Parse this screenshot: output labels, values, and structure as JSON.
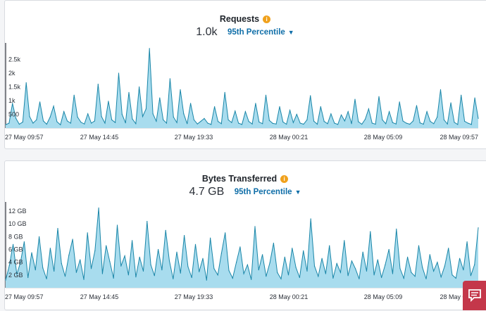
{
  "requests": {
    "title": "Requests",
    "info_icon": "info-icon",
    "value": "1.0k",
    "percentile_label": "95th Percentile",
    "y_ticks": [
      "500",
      "1k",
      "1.5k",
      "2k",
      "2.5k"
    ],
    "x_ticks": [
      "27 May 09:57",
      "27 May 14:45",
      "27 May 19:33",
      "28 May 00:21",
      "28 May 05:09",
      "28 May 09:57"
    ]
  },
  "bytes": {
    "title": "Bytes Transferred",
    "info_icon": "info-icon",
    "value": "4.7 GB",
    "percentile_label": "95th Percentile",
    "y_ticks": [
      "2 GB",
      "4 GB",
      "6 GB",
      "8 GB",
      "10 GB",
      "12 GB"
    ],
    "x_ticks": [
      "27 May 09:57",
      "27 May 14:45",
      "27 May 19:33",
      "28 May 00:21",
      "28 May 05:09",
      "28 May 09:57"
    ]
  },
  "colors": {
    "line": "#1a86a8",
    "fill": "#a8dcee",
    "accent": "#0f6ea8",
    "feedback": "#c4374a"
  },
  "chart_data": [
    {
      "type": "area",
      "title": "Requests",
      "xlabel": "",
      "ylabel": "",
      "ylim": [
        0,
        3000
      ],
      "x_ticks": [
        "27 May 09:57",
        "27 May 14:45",
        "27 May 19:33",
        "28 May 00:21",
        "28 May 05:09",
        "28 May 09:57"
      ],
      "series": [
        {
          "name": "Requests",
          "values": [
            120,
            180,
            900,
            350,
            140,
            220,
            1650,
            420,
            180,
            300,
            950,
            260,
            140,
            400,
            800,
            230,
            120,
            600,
            260,
            180,
            1200,
            400,
            210,
            150,
            520,
            180,
            260,
            1600,
            420,
            180,
            980,
            300,
            200,
            2000,
            500,
            190,
            1300,
            330,
            160,
            1500,
            420,
            700,
            2900,
            520,
            250,
            1100,
            300,
            180,
            1800,
            400,
            200,
            1400,
            520,
            160,
            900,
            300,
            150,
            250,
            350,
            180,
            130,
            780,
            240,
            160,
            1300,
            300,
            200,
            620,
            180,
            130,
            600,
            240,
            150,
            900,
            220,
            160,
            1200,
            280,
            170,
            150,
            780,
            220,
            140,
            650,
            200,
            500,
            180,
            140,
            300,
            1180,
            250,
            140,
            780,
            240,
            160,
            520,
            180,
            130,
            480,
            260,
            600,
            160,
            1050,
            230,
            140,
            320,
            700,
            180,
            140,
            1150,
            300,
            160,
            600,
            200,
            150,
            950,
            260,
            180,
            140,
            260,
            820,
            190,
            140,
            600,
            240,
            160,
            400,
            1400,
            300,
            150,
            920,
            210,
            130,
            1200,
            250,
            180,
            130,
            1100,
            350
          ]
        }
      ]
    },
    {
      "type": "area",
      "title": "Bytes Transferred",
      "xlabel": "",
      "ylabel": "",
      "ylim": [
        0,
        13
      ],
      "x_ticks": [
        "27 May 09:57",
        "27 May 14:45",
        "27 May 19:33",
        "28 May 00:21",
        "28 May 05:09",
        "28 May 09:57"
      ],
      "series": [
        {
          "name": "Bytes Transferred",
          "values": [
            1.2,
            3.5,
            6.8,
            2.1,
            4.0,
            7.2,
            1.6,
            5.5,
            2.8,
            8.0,
            3.1,
            1.4,
            6.2,
            2.6,
            9.3,
            3.8,
            1.8,
            5.1,
            7.6,
            2.4,
            4.4,
            1.3,
            8.6,
            3.0,
            5.8,
            12.5,
            2.2,
            6.6,
            4.1,
            1.5,
            9.8,
            3.4,
            5.0,
            2.0,
            7.4,
            1.7,
            4.8,
            2.6,
            10.4,
            3.6,
            1.9,
            6.0,
            2.8,
            9.0,
            4.2,
            1.4,
            5.6,
            2.3,
            8.2,
            3.3,
            1.6,
            6.8,
            2.5,
            4.6,
            1.2,
            7.8,
            3.0,
            2.0,
            5.4,
            8.6,
            2.7,
            1.5,
            4.0,
            6.4,
            2.2,
            3.6,
            1.3,
            9.6,
            2.8,
            5.2,
            1.8,
            3.9,
            7.0,
            2.4,
            1.4,
            4.8,
            2.0,
            6.2,
            3.2,
            1.6,
            5.8,
            2.6,
            10.8,
            3.4,
            1.8,
            4.6,
            2.2,
            6.6,
            1.5,
            3.8,
            2.4,
            7.4,
            1.9,
            4.2,
            3.0,
            1.4,
            5.6,
            2.6,
            8.8,
            2.0,
            4.4,
            1.6,
            3.6,
            6.0,
            2.2,
            9.2,
            3.0,
            1.5,
            4.8,
            2.4,
            1.8,
            6.6,
            3.2,
            1.4,
            5.2,
            2.6,
            4.0,
            1.7,
            3.4,
            6.2,
            2.0,
            1.5,
            4.6,
            2.8,
            7.2,
            1.9,
            3.6,
            9.4
          ]
        }
      ]
    }
  ]
}
